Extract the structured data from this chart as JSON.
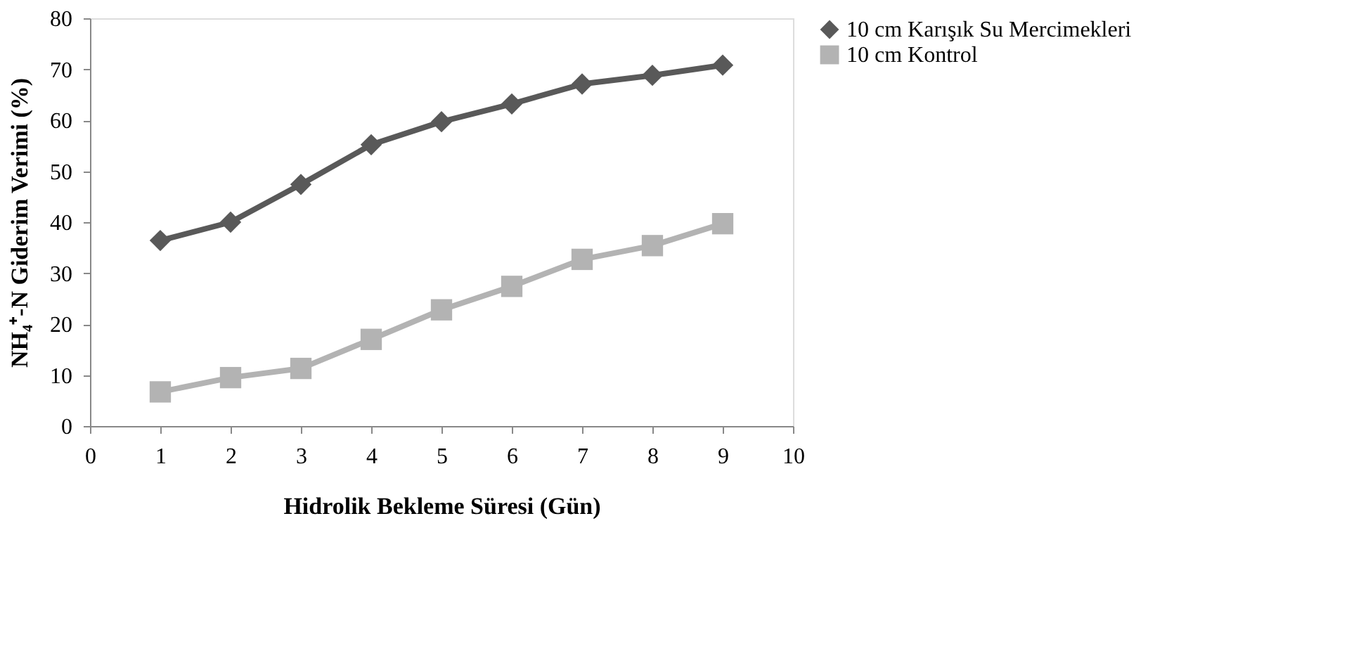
{
  "chart_data": {
    "type": "line",
    "xlabel": "Hidrolik Bekleme Süresi (Gün)",
    "ylabel": "NH₄⁺-N Giderim Verimi (%)",
    "x": [
      1,
      2,
      3,
      4,
      5,
      6,
      7,
      8,
      9
    ],
    "xlim": [
      0,
      10
    ],
    "xticks": [
      0,
      1,
      2,
      3,
      4,
      5,
      6,
      7,
      8,
      9,
      10
    ],
    "ylim": [
      0,
      80
    ],
    "yticks": [
      0,
      10,
      20,
      30,
      40,
      50,
      60,
      70,
      80
    ],
    "grid": false,
    "legend": "right",
    "series": [
      {
        "name": "10 cm Karışık Su Mercimekleri",
        "color": "#595959",
        "marker": "diamond",
        "values": [
          36.4,
          40,
          47.4,
          55.2,
          59.7,
          63.2,
          67.1,
          68.8,
          70.8
        ]
      },
      {
        "name": "10 cm Kontrol",
        "color": "#b3b3b3",
        "marker": "square",
        "values": [
          6.7,
          9.5,
          11.3,
          17,
          22.8,
          27.4,
          32.7,
          35.4,
          39.7
        ]
      }
    ]
  }
}
